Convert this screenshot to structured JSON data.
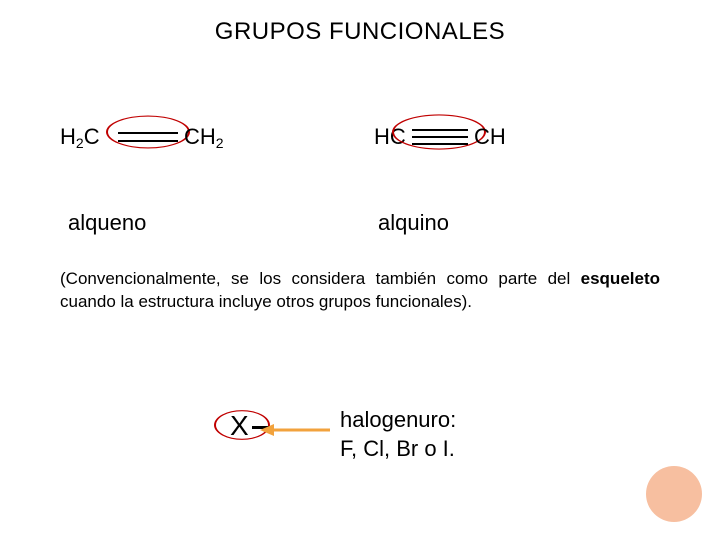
{
  "title": "GRUPOS FUNCIONALES",
  "alkene": {
    "left_part1": "H",
    "left_sub": "2",
    "left_part2": "C",
    "right_part1": "CH",
    "right_sub": "2",
    "label": "alqueno",
    "circle_color": "#c00000",
    "bond_count": 2
  },
  "alkyne": {
    "left": "HC",
    "right": "CH",
    "label": "alquino",
    "circle_color": "#c00000",
    "bond_count": 3
  },
  "paragraph": "(Convencionalmente, se los considera también como parte del esqueleto cuando la estructura incluye otros grupos funcionales).",
  "bold_word": "esqueleto",
  "halide": {
    "x": "X",
    "line1": "halogenuro:",
    "line2": "F, Cl, Br o I.",
    "circle_color": "#c00000",
    "arrow_color": "#f2a23c"
  },
  "corner_color": "#f7bfa0",
  "background_color": "#ffffff",
  "text_color": "#000000",
  "fonts": {
    "title_size": 24,
    "label_size": 22,
    "paragraph_size": 17,
    "formula_size": 22
  }
}
